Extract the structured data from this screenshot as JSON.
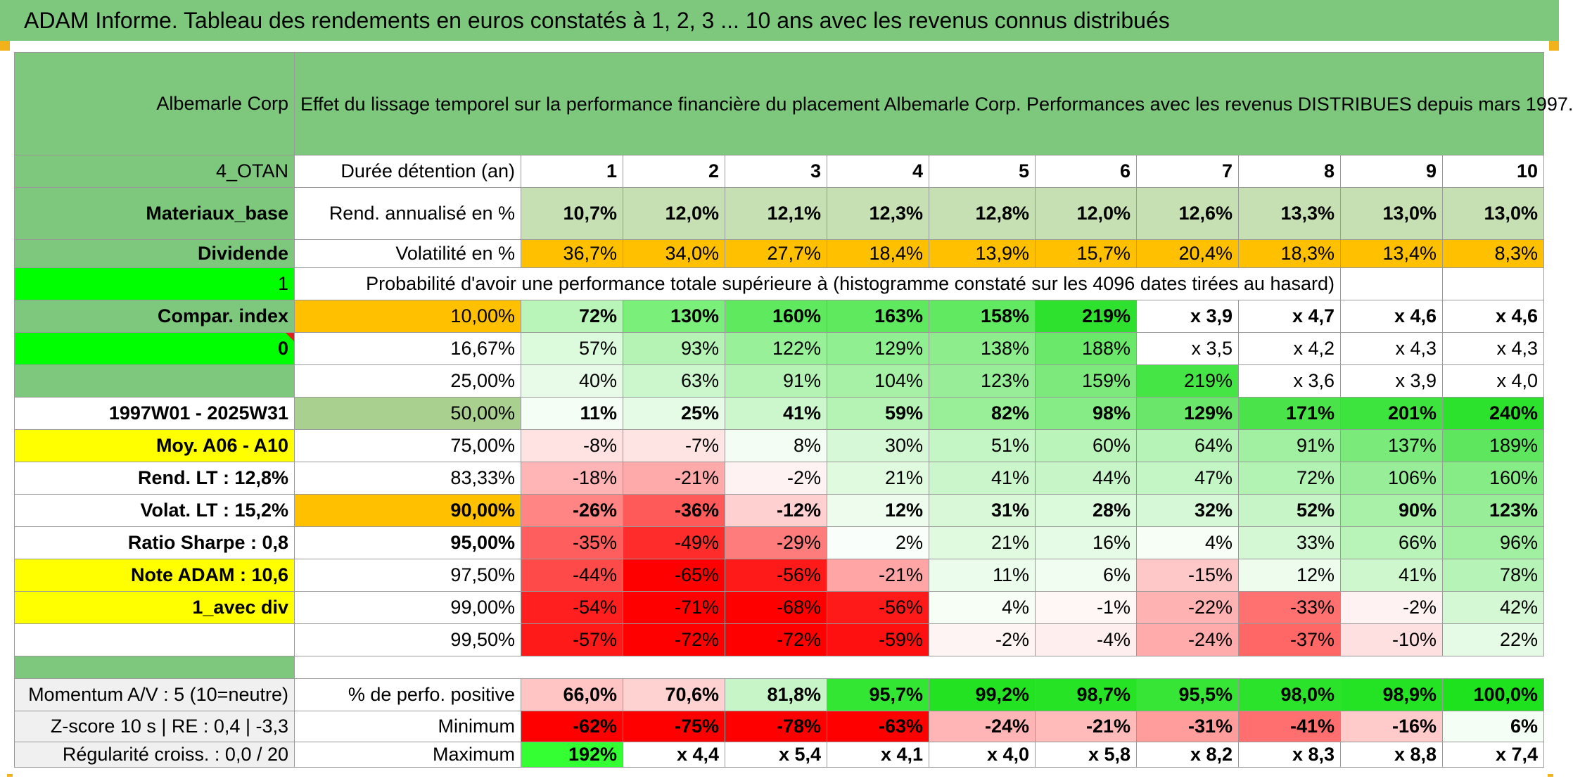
{
  "title": "ADAM Informe. Tableau des rendements en euros constatés à 1, 2, 3 ... 10 ans avec les revenus connus distribués",
  "header": {
    "fund_name": "Albemarle Corp",
    "description": "Effet du lissage temporel sur la performance financière du placement Albemarle Corp. Performances avec les revenus DISTRIBUES depuis mars 1997."
  },
  "colors": {
    "green_header": "#7ec87e",
    "orange": "#ffc000",
    "yellow": "#ffff00",
    "lime": "#00ff00",
    "sage": "#a9d08e"
  },
  "rows": [
    {
      "left": "4_OTAN",
      "label": "Durée détention (an)",
      "values": [
        "1",
        "2",
        "3",
        "4",
        "5",
        "6",
        "7",
        "8",
        "9",
        "10"
      ]
    },
    {
      "left": "Materiaux_base",
      "label": "Rend. annualisé en %",
      "values": [
        "10,7%",
        "12,0%",
        "12,1%",
        "12,3%",
        "12,8%",
        "12,0%",
        "12,6%",
        "13,3%",
        "13,0%",
        "13,0%"
      ]
    },
    {
      "left": "Dividende",
      "label": "Volatilité en %",
      "values": [
        "36,7%",
        "34,0%",
        "27,7%",
        "18,4%",
        "13,9%",
        "15,7%",
        "20,4%",
        "18,3%",
        "13,4%",
        "8,3%"
      ]
    },
    {
      "left": "1",
      "label": "Probabilité d'avoir une performance totale supérieure à (histogramme constaté sur les 4096 dates tirées au hasard)"
    },
    {
      "left": "Compar. index",
      "label": "10,00%",
      "values": [
        "72%",
        "130%",
        "160%",
        "163%",
        "158%",
        "219%",
        "x 3,9",
        "x 4,7",
        "x 4,6",
        "x 4,6"
      ]
    },
    {
      "left": "0",
      "label": "16,67%",
      "values": [
        "57%",
        "93%",
        "122%",
        "129%",
        "138%",
        "188%",
        "x 3,5",
        "x 4,2",
        "x 4,3",
        "x 4,3"
      ]
    },
    {
      "left": "",
      "label": "25,00%",
      "values": [
        "40%",
        "63%",
        "91%",
        "104%",
        "123%",
        "159%",
        "219%",
        "x 3,6",
        "x 3,9",
        "x 4,0"
      ]
    },
    {
      "left": "1997W01 - 2025W31",
      "label": "50,00%",
      "values": [
        "11%",
        "25%",
        "41%",
        "59%",
        "82%",
        "98%",
        "129%",
        "171%",
        "201%",
        "240%"
      ]
    },
    {
      "left": "Moy. A06 - A10",
      "label": "75,00%",
      "values": [
        "-8%",
        "-7%",
        "8%",
        "30%",
        "51%",
        "60%",
        "64%",
        "91%",
        "137%",
        "189%"
      ]
    },
    {
      "left": "Rend. LT :    12,8%",
      "label": "83,33%",
      "values": [
        "-18%",
        "-21%",
        "-2%",
        "21%",
        "41%",
        "44%",
        "47%",
        "72%",
        "106%",
        "160%"
      ]
    },
    {
      "left": "Volat. LT :    15,2%",
      "label": "90,00%",
      "values": [
        "-26%",
        "-36%",
        "-12%",
        "12%",
        "31%",
        "28%",
        "32%",
        "52%",
        "90%",
        "123%"
      ]
    },
    {
      "left": "Ratio Sharpe :    0,8",
      "label": "95,00%",
      "values": [
        "-35%",
        "-49%",
        "-29%",
        "2%",
        "21%",
        "16%",
        "4%",
        "33%",
        "66%",
        "96%"
      ]
    },
    {
      "left": "Note ADAM : 10,6",
      "label": "97,50%",
      "values": [
        "-44%",
        "-65%",
        "-56%",
        "-21%",
        "11%",
        "6%",
        "-15%",
        "12%",
        "41%",
        "78%"
      ]
    },
    {
      "left": "1_avec div",
      "label": "99,00%",
      "values": [
        "-54%",
        "-71%",
        "-68%",
        "-56%",
        "4%",
        "-1%",
        "-22%",
        "-33%",
        "-2%",
        "42%"
      ]
    },
    {
      "left": "",
      "label": "99,50%",
      "values": [
        "-57%",
        "-72%",
        "-72%",
        "-59%",
        "-2%",
        "-4%",
        "-24%",
        "-37%",
        "-10%",
        "22%"
      ]
    },
    {
      "left": "Momentum A/V : 5 (10=neutre)",
      "label": "% de perfo. positive",
      "values": [
        "66,0%",
        "70,6%",
        "81,8%",
        "95,7%",
        "99,2%",
        "98,7%",
        "95,5%",
        "98,0%",
        "98,9%",
        "100,0%"
      ]
    },
    {
      "left": "Z-score 10 s | RE : 0,4 | -3,3",
      "label": "Minimum",
      "values": [
        "-62%",
        "-75%",
        "-78%",
        "-63%",
        "-24%",
        "-21%",
        "-31%",
        "-41%",
        "-16%",
        "6%"
      ]
    },
    {
      "left": "Régularité croiss. : 0,0 / 20",
      "label": "Maximum",
      "values": [
        "192%",
        "x 4,4",
        "x 5,4",
        "x 4,1",
        "x 4,0",
        "x 5,8",
        "x 8,2",
        "x 8,3",
        "x 8,8",
        "x 7,4"
      ]
    }
  ]
}
